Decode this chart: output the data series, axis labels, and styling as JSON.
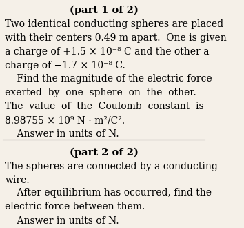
{
  "bg_color": "#f5f0e8",
  "text_color": "#000000",
  "title1": "(part 1 of 2)",
  "para1_line1": "Two identical conducting spheres are placed",
  "para1_line2": "with their centers 0.49 m apart.  One is given",
  "para1_line3": "a charge of +1.5 × 10⁻⁸ C and the other a",
  "para1_line4": "charge of −1.7 × 10⁻⁸ C.",
  "para2_line1": "    Find the magnitude of the electric force",
  "para2_line2": "exerted  by  one  sphere  on  the  other.",
  "para2_line3": "The  value  of  the  Coulomb  constant  is",
  "para2_line4": "8.98755 × 10⁹ N · m²/C².",
  "para2_line5": "    Answer in units of N.",
  "title2": "(part 2 of 2)",
  "para3_line1": "The spheres are connected by a conducting",
  "para3_line2": "wire.",
  "para3_line3": "    After equilibrium has occurred, find the",
  "para3_line4": "electric force between them.",
  "para3_line5": "    Answer in units of N.",
  "font_size_title": 10.5,
  "font_size_body": 10.0
}
